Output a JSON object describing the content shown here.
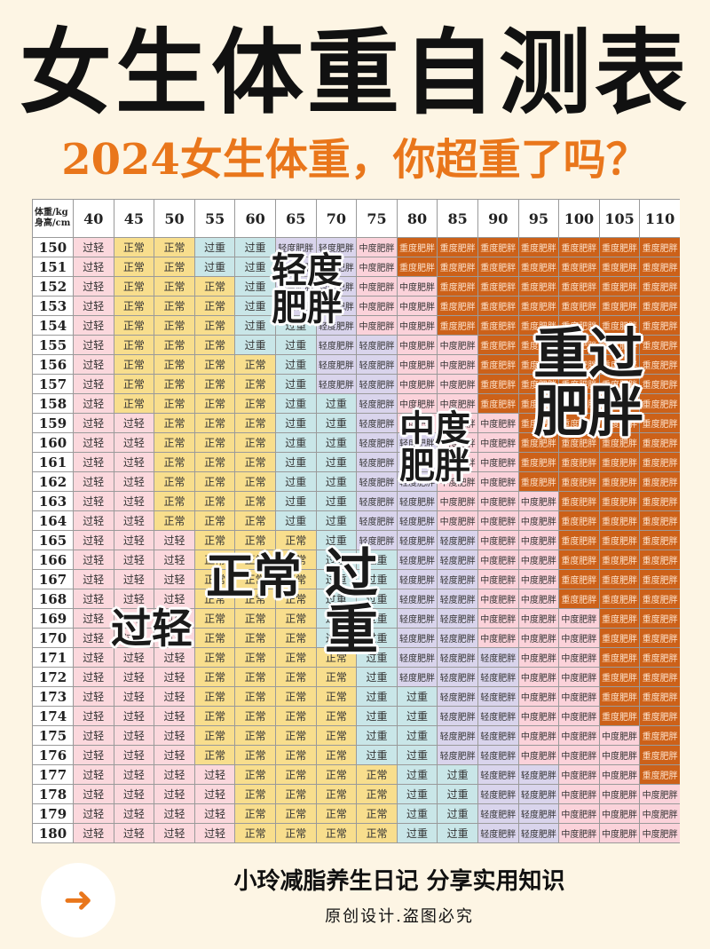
{
  "title": "女生体重自测表",
  "subtitle": "2024女生体重，你超重了吗？",
  "table": {
    "corner_weight": "体重/kg",
    "corner_height": "身高/cm",
    "weights": [
      "40",
      "45",
      "50",
      "55",
      "60",
      "65",
      "70",
      "75",
      "80",
      "85",
      "90",
      "95",
      "100",
      "105",
      "110"
    ],
    "heights": [
      "150",
      "151",
      "152",
      "153",
      "154",
      "155",
      "156",
      "157",
      "158",
      "159",
      "160",
      "161",
      "162",
      "163",
      "164",
      "165",
      "166",
      "167",
      "168",
      "169",
      "170",
      "171",
      "172",
      "173",
      "174",
      "175",
      "176",
      "177",
      "178",
      "179",
      "180"
    ],
    "categories": [
      "过轻",
      "正常",
      "过重",
      "轻度肥胖",
      "中度肥胖",
      "重度肥胖"
    ],
    "category_colors": [
      "#fbd8dd",
      "#f8de8d",
      "#c9e6e8",
      "#d9d4ec",
      "#fbd2da",
      "#cc6119"
    ],
    "rows": [
      [
        0,
        1,
        1,
        2,
        2,
        3,
        3,
        4,
        5,
        5,
        5,
        5,
        5,
        5,
        5
      ],
      [
        0,
        1,
        1,
        2,
        2,
        3,
        3,
        4,
        5,
        5,
        5,
        5,
        5,
        5,
        5
      ],
      [
        0,
        1,
        1,
        1,
        2,
        3,
        3,
        4,
        4,
        5,
        5,
        5,
        5,
        5,
        5
      ],
      [
        0,
        1,
        1,
        1,
        2,
        3,
        3,
        4,
        4,
        5,
        5,
        5,
        5,
        5,
        5
      ],
      [
        0,
        1,
        1,
        1,
        2,
        2,
        3,
        4,
        4,
        5,
        5,
        5,
        5,
        5,
        5
      ],
      [
        0,
        1,
        1,
        1,
        2,
        2,
        3,
        3,
        4,
        4,
        5,
        5,
        5,
        5,
        5
      ],
      [
        0,
        1,
        1,
        1,
        1,
        2,
        3,
        3,
        4,
        4,
        5,
        5,
        5,
        5,
        5
      ],
      [
        0,
        1,
        1,
        1,
        1,
        2,
        3,
        3,
        4,
        4,
        5,
        5,
        5,
        5,
        5
      ],
      [
        0,
        1,
        1,
        1,
        1,
        2,
        2,
        3,
        4,
        4,
        5,
        5,
        5,
        5,
        5
      ],
      [
        0,
        0,
        1,
        1,
        1,
        2,
        2,
        3,
        4,
        4,
        4,
        5,
        5,
        5,
        5
      ],
      [
        0,
        0,
        1,
        1,
        1,
        2,
        2,
        3,
        3,
        4,
        4,
        5,
        5,
        5,
        5
      ],
      [
        0,
        0,
        1,
        1,
        1,
        2,
        2,
        3,
        3,
        4,
        4,
        5,
        5,
        5,
        5
      ],
      [
        0,
        0,
        1,
        1,
        1,
        2,
        2,
        3,
        3,
        4,
        4,
        5,
        5,
        5,
        5
      ],
      [
        0,
        0,
        1,
        1,
        1,
        2,
        2,
        3,
        3,
        4,
        4,
        4,
        5,
        5,
        5
      ],
      [
        0,
        0,
        1,
        1,
        1,
        2,
        2,
        3,
        3,
        4,
        4,
        4,
        5,
        5,
        5
      ],
      [
        0,
        0,
        0,
        1,
        1,
        1,
        2,
        3,
        3,
        3,
        4,
        4,
        5,
        5,
        5
      ],
      [
        0,
        0,
        0,
        1,
        1,
        1,
        2,
        2,
        3,
        3,
        4,
        4,
        5,
        5,
        5
      ],
      [
        0,
        0,
        0,
        1,
        1,
        1,
        2,
        2,
        3,
        3,
        4,
        4,
        5,
        5,
        5
      ],
      [
        0,
        0,
        0,
        1,
        1,
        1,
        2,
        2,
        3,
        3,
        4,
        4,
        5,
        5,
        5
      ],
      [
        0,
        0,
        0,
        1,
        1,
        1,
        2,
        2,
        3,
        3,
        4,
        4,
        4,
        5,
        5
      ],
      [
        0,
        0,
        0,
        1,
        1,
        1,
        2,
        2,
        3,
        3,
        4,
        4,
        4,
        5,
        5
      ],
      [
        0,
        0,
        0,
        1,
        1,
        1,
        1,
        2,
        3,
        3,
        3,
        4,
        4,
        5,
        5
      ],
      [
        0,
        0,
        0,
        1,
        1,
        1,
        1,
        2,
        3,
        3,
        3,
        4,
        4,
        5,
        5
      ],
      [
        0,
        0,
        0,
        1,
        1,
        1,
        1,
        2,
        2,
        3,
        3,
        4,
        4,
        5,
        5
      ],
      [
        0,
        0,
        0,
        1,
        1,
        1,
        1,
        2,
        2,
        3,
        3,
        4,
        4,
        5,
        5
      ],
      [
        0,
        0,
        0,
        1,
        1,
        1,
        1,
        2,
        2,
        3,
        3,
        4,
        4,
        4,
        5
      ],
      [
        0,
        0,
        0,
        1,
        1,
        1,
        1,
        2,
        2,
        3,
        3,
        4,
        4,
        4,
        5
      ],
      [
        0,
        0,
        0,
        0,
        1,
        1,
        1,
        1,
        2,
        2,
        3,
        3,
        4,
        4,
        5
      ],
      [
        0,
        0,
        0,
        0,
        1,
        1,
        1,
        1,
        2,
        2,
        3,
        3,
        4,
        4,
        4
      ],
      [
        0,
        0,
        0,
        0,
        1,
        1,
        1,
        1,
        2,
        2,
        3,
        3,
        4,
        4,
        4
      ],
      [
        0,
        0,
        0,
        0,
        1,
        1,
        1,
        1,
        2,
        2,
        3,
        3,
        4,
        4,
        4
      ]
    ]
  },
  "overlays": {
    "light_obese": "轻度\n肥胖",
    "severe_obese": "重过\n肥胖",
    "moderate_obese": "中度\n肥胖",
    "normal": "正常",
    "overweight": "过\n重",
    "underweight": "过轻"
  },
  "footer": {
    "main": "小玲减脂养生日记  分享实用知识",
    "sub": "原创设计.盗图必究",
    "arrow_icon": "arrow-right-icon"
  }
}
